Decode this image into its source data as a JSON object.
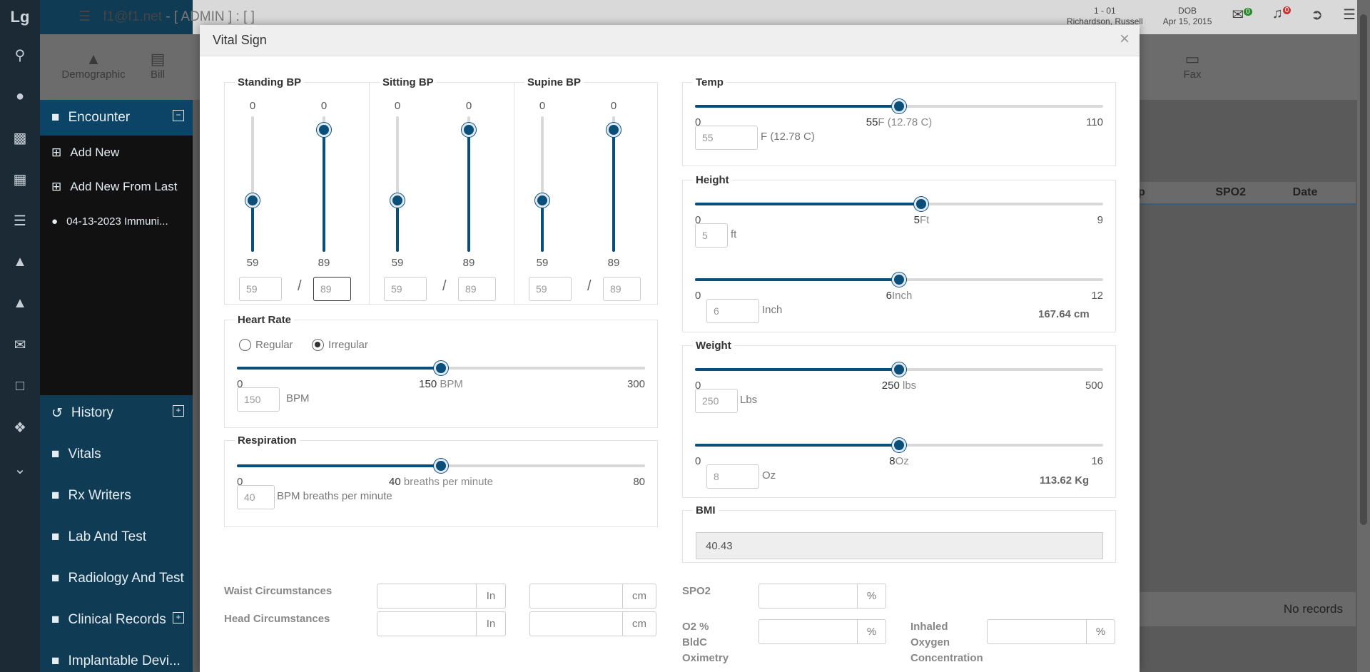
{
  "app": {
    "logo": "Lg",
    "title": "f1@f1.net",
    "title_suffix": " - [ ADMIN ] : [ ]",
    "patient_id": "1 - 01",
    "patient_name": "Richardson, Russell",
    "dob_label": "DOB",
    "dob": "Apr 15, 2015",
    "mail_count": "0",
    "notif_count": "0",
    "tabs": [
      {
        "label": "Demographic"
      },
      {
        "label": "Bill"
      },
      {
        "label": "Fax"
      }
    ],
    "nav": {
      "encounter": "Encounter",
      "add_new": "Add New",
      "add_new_from_last": "Add New From Last",
      "encounter_item": "04-13-2023 Immuni...",
      "history": "History",
      "vitals": "Vitals",
      "rx_writers": "Rx Writers",
      "lab_and_test": "Lab And Test",
      "radiology_and_test": "Radiology And Test",
      "clinical_records": "Clinical Records",
      "implantable_devices": "Implantable Devi..."
    },
    "table_headers": [
      "p",
      "SPO2",
      "Date"
    ],
    "no_records": "No records"
  },
  "modal": {
    "title": "Vital Sign",
    "close": "×",
    "standing_bp": {
      "legend": "Standing BP",
      "sys_max": "0",
      "dia_max": "0",
      "sys_val": "59",
      "dia_val": "89",
      "sys_input": "59",
      "dia_input": "89",
      "sys_fraction": 0.38,
      "dia_fraction": 0.9
    },
    "sitting_bp": {
      "legend": "Sitting BP",
      "sys_max": "0",
      "dia_max": "0",
      "sys_val": "59",
      "dia_val": "89",
      "sys_input": "59",
      "dia_input": "89",
      "sys_fraction": 0.38,
      "dia_fraction": 0.9
    },
    "supine_bp": {
      "legend": "Supine BP",
      "sys_max": "0",
      "dia_max": "0",
      "sys_val": "59",
      "dia_val": "89",
      "sys_input": "59",
      "dia_input": "89",
      "sys_fraction": 0.38,
      "dia_fraction": 0.9
    },
    "slash": "/",
    "heart_rate": {
      "legend": "Heart Rate",
      "regular": "Regular",
      "irregular": "Irregular",
      "selected": "Irregular",
      "min": "0",
      "max": "300",
      "value": "150",
      "unit": "BPM",
      "fraction": 0.5,
      "input": "150",
      "input_unit": "BPM"
    },
    "respiration": {
      "legend": "Respiration",
      "min": "0",
      "max": "80",
      "value": "40",
      "unit": "breaths per minute",
      "fraction": 0.5,
      "input": "40",
      "input_unit": "BPM breaths per minute"
    },
    "temp": {
      "legend": "Temp",
      "min": "0",
      "max": "110",
      "value": "55",
      "unit": "F (12.78 C)",
      "fraction": 0.5,
      "input": "55",
      "input_unit": "F (12.78 C)"
    },
    "height": {
      "legend": "Height",
      "ft_min": "0",
      "ft_max": "9",
      "ft_value": "5",
      "ft_unit": "Ft",
      "ft_fraction": 0.555,
      "ft_input": "5",
      "ft_input_unit": "ft",
      "in_min": "0",
      "in_max": "12",
      "in_value": "6",
      "in_unit": "Inch",
      "in_fraction": 0.5,
      "in_input": "6",
      "in_input_unit": "Inch",
      "total": "167.64 cm"
    },
    "weight": {
      "legend": "Weight",
      "lbs_min": "0",
      "lbs_max": "500",
      "lbs_value": "250",
      "lbs_unit": "lbs",
      "lbs_fraction": 0.5,
      "lbs_input": "250",
      "lbs_input_unit": "Lbs",
      "oz_min": "0",
      "oz_max": "16",
      "oz_value": "8",
      "oz_unit": "Oz",
      "oz_fraction": 0.5,
      "oz_input": "8",
      "oz_input_unit": "Oz",
      "total": "113.62 Kg"
    },
    "bmi": {
      "legend": "BMI",
      "value": "40.43"
    },
    "waist": {
      "label": "Waist Circumstances",
      "unit_in": "In",
      "unit_cm": "cm"
    },
    "head": {
      "label": "Head Circumstances",
      "unit_in": "In",
      "unit_cm": "cm"
    },
    "spo2": {
      "label": "SPO2",
      "unit": "%"
    },
    "o2": {
      "label_l1": "O2 %",
      "label_l2": "BldC",
      "label_l3": "Oximetry",
      "unit": "%"
    },
    "inhaled": {
      "label_l1": "Inhaled",
      "label_l2": "Oxygen",
      "label_l3": "Concentration",
      "unit": "%"
    }
  },
  "colors": {
    "accent": "#0a4f7a",
    "nav_bg": "#0f3b55",
    "track": "#d9d9d9"
  }
}
